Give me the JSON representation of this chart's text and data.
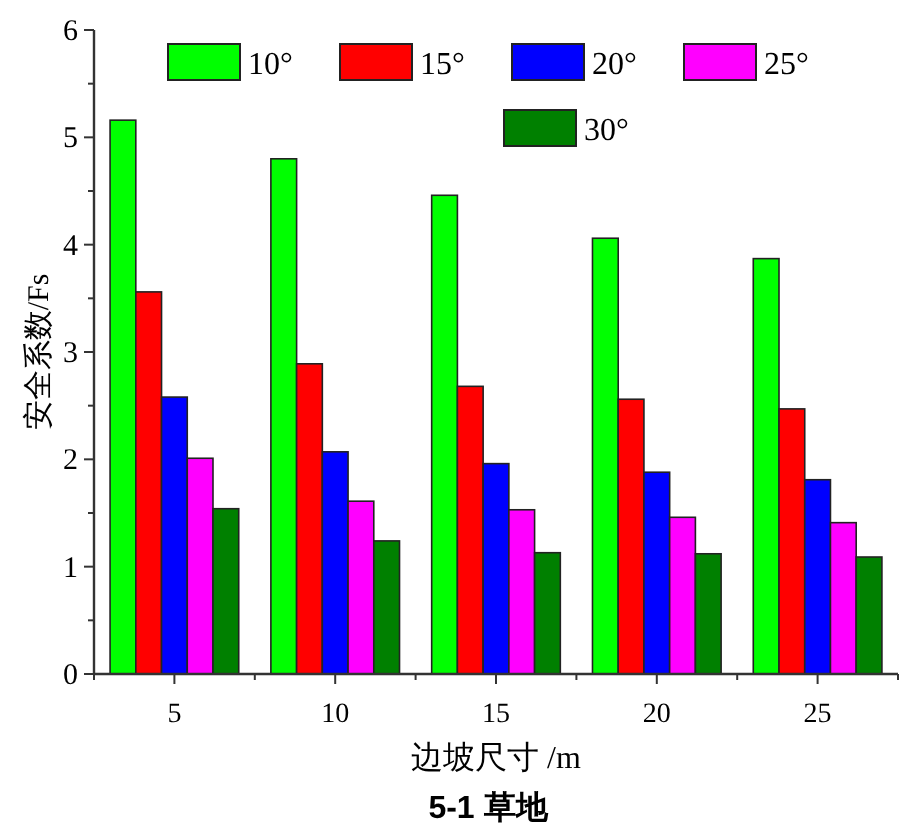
{
  "chart_data": {
    "type": "bar",
    "title": "5-1 草地",
    "xlabel": "边坡尺寸 /m",
    "ylabel": "安全系数/Fs",
    "categories": [
      "5",
      "10",
      "15",
      "20",
      "25"
    ],
    "series": [
      {
        "name": "10°",
        "color": "#00ff00",
        "values": [
          5.16,
          4.8,
          4.46,
          4.06,
          3.87
        ]
      },
      {
        "name": "15°",
        "color": "#ff0000",
        "values": [
          3.56,
          2.89,
          2.68,
          2.56,
          2.47
        ]
      },
      {
        "name": "20°",
        "color": "#0000ff",
        "values": [
          2.58,
          2.07,
          1.96,
          1.88,
          1.81
        ]
      },
      {
        "name": "25°",
        "color": "#ff00ff",
        "values": [
          2.01,
          1.61,
          1.53,
          1.46,
          1.41
        ]
      },
      {
        "name": "30°",
        "color": "#008000",
        "values": [
          1.54,
          1.24,
          1.13,
          1.12,
          1.09
        ]
      }
    ],
    "ylim": [
      0,
      6
    ],
    "yticks": [
      0,
      1,
      2,
      3,
      4,
      5,
      6
    ],
    "legend": "top right",
    "grid": false
  }
}
